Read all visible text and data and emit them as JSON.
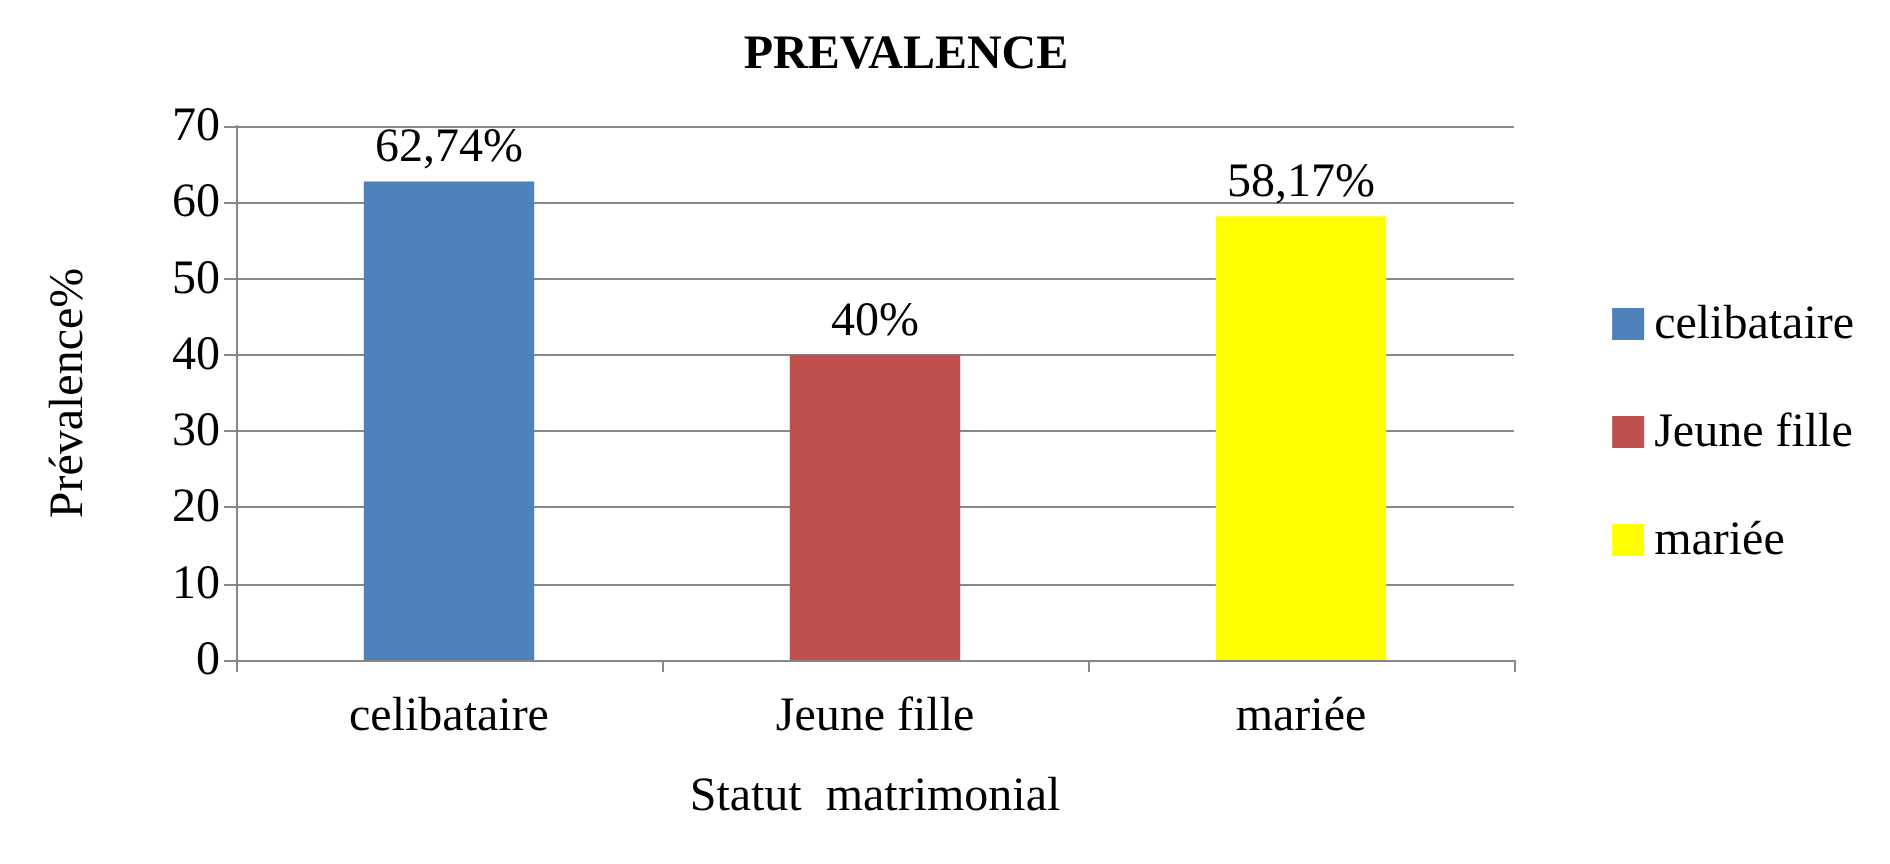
{
  "chart_data": {
    "type": "bar",
    "title": "PREVALENCE",
    "xlabel": "Statut  matrimonial",
    "ylabel": "Prévalence%",
    "categories": [
      "celibataire",
      "Jeune fille",
      "mariée"
    ],
    "series": [
      {
        "name": "celibataire",
        "color": "#4f81bd",
        "values": [
          62.74,
          null,
          null
        ],
        "value_labels": [
          "62,74%",
          null,
          null
        ]
      },
      {
        "name": "Jeune fille",
        "color": "#c0504d",
        "values": [
          null,
          40,
          null
        ],
        "value_labels": [
          null,
          "40%",
          null
        ]
      },
      {
        "name": "mariée",
        "color": "#ffff00",
        "values": [
          null,
          null,
          58.17
        ],
        "value_labels": [
          null,
          null,
          "58,17%"
        ]
      }
    ],
    "ylim": [
      0,
      70
    ],
    "yticks": [
      0,
      10,
      20,
      30,
      40,
      50,
      60,
      70
    ],
    "grid": "y",
    "legend": "right"
  }
}
